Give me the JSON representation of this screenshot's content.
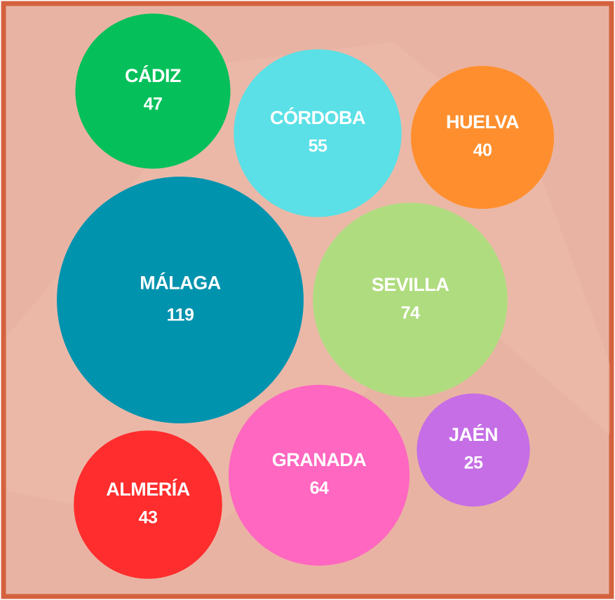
{
  "chart_data": {
    "type": "packed-bubble",
    "categories": [
      "CÁDIZ",
      "CÓRDOBA",
      "HUELVA",
      "MÁLAGA",
      "SEVILLA",
      "GRANADA",
      "JAÉN",
      "ALMERÍA"
    ],
    "values": [
      47,
      55,
      40,
      119,
      74,
      64,
      25,
      43
    ],
    "colors": [
      "#05c05a",
      "#5ae0e6",
      "#ff8f2e",
      "#0093ae",
      "#b0dc80",
      "#ff67c0",
      "#c56ee6",
      "#ff2d2d"
    ]
  }
}
